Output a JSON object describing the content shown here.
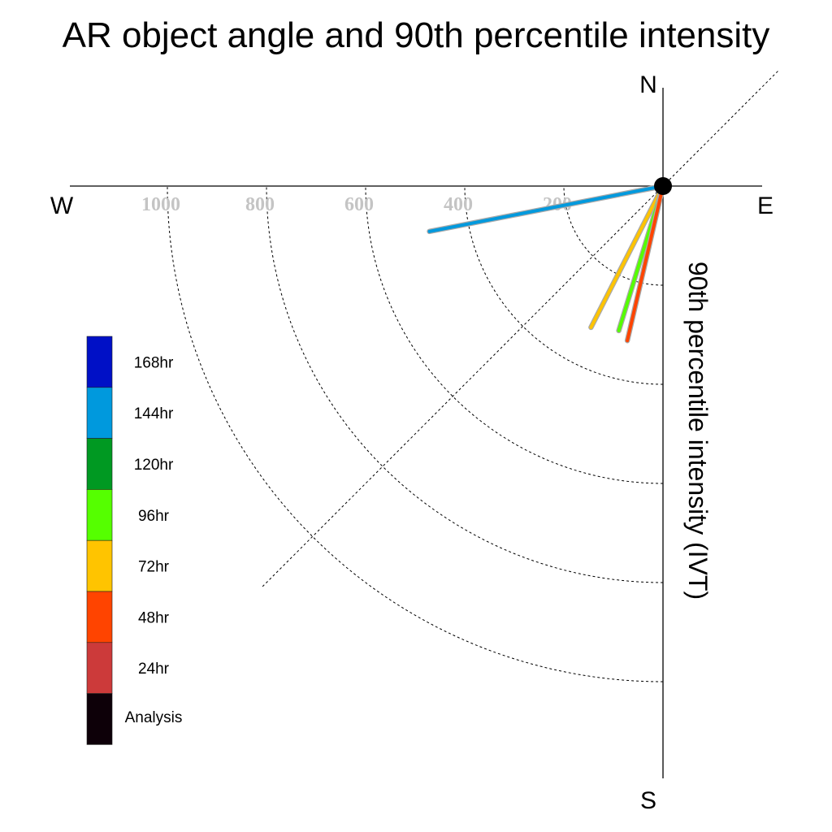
{
  "chart_data": {
    "type": "polar-vector",
    "title": "AR object angle and 90th percentile intensity",
    "axis_label": "90th percentile intensity (IVT)",
    "compass": {
      "n": "N",
      "e": "E",
      "s": "S",
      "w": "W"
    },
    "radial_ticks": [
      200,
      400,
      600,
      800,
      1000
    ],
    "radial_tick_labels": [
      "200",
      "400",
      "600",
      "800",
      "1000"
    ],
    "radial_max": 1200,
    "grid": true,
    "legend_position": "left",
    "legend": [
      {
        "label": "168hr",
        "color": "#0010c6"
      },
      {
        "label": "144hr",
        "color": "#0099dd"
      },
      {
        "label": "120hr",
        "color": "#009922"
      },
      {
        "label": "96hr",
        "color": "#55ff00"
      },
      {
        "label": "72hr",
        "color": "#ffc400"
      },
      {
        "label": "48hr",
        "color": "#ff4400"
      },
      {
        "label": "24hr",
        "color": "#cc3a3a"
      },
      {
        "label": "Analysis",
        "color": "#0d0008"
      }
    ],
    "vectors": [
      {
        "series": "144hr",
        "color": "#0099dd",
        "bearing_deg": 259,
        "intensity": 480
      },
      {
        "series": "72hr",
        "color": "#ffc400",
        "bearing_deg": 207,
        "intensity": 320
      },
      {
        "series": "96hr",
        "color": "#55ff00",
        "bearing_deg": 197,
        "intensity": 305
      },
      {
        "series": "48hr",
        "color": "#ff4400",
        "bearing_deg": 193,
        "intensity": 320
      }
    ]
  }
}
